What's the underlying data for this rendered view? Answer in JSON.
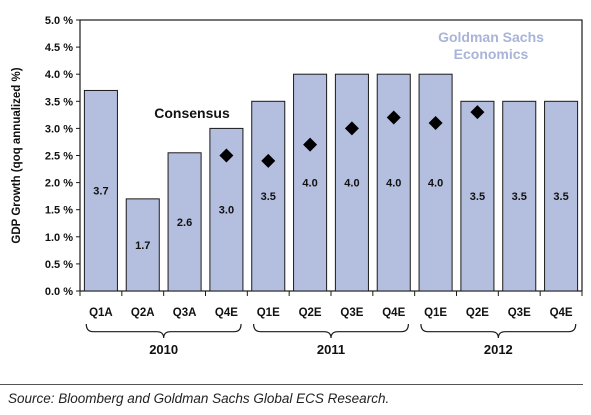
{
  "chart_data": {
    "type": "bar",
    "categories": [
      "Q1A",
      "Q2A",
      "Q3A",
      "Q4E",
      "Q1E",
      "Q2E",
      "Q3E",
      "Q4E",
      "Q1E",
      "Q2E",
      "Q3E",
      "Q4E"
    ],
    "values": [
      3.7,
      1.7,
      2.55,
      3.0,
      3.5,
      4.0,
      4.0,
      4.0,
      4.0,
      3.5,
      3.5,
      3.5
    ],
    "value_labels": [
      "3.7",
      "1.7",
      "2.6",
      "3.0",
      "3.5",
      "4.0",
      "4.0",
      "4.0",
      "4.0",
      "3.5",
      "3.5",
      "3.5"
    ],
    "consensus": [
      null,
      null,
      null,
      2.5,
      2.4,
      2.7,
      3.0,
      3.2,
      3.1,
      3.3,
      null,
      null
    ],
    "consensus_label": "Consensus",
    "year_groups": [
      {
        "label": "2010",
        "start": 0,
        "end": 3
      },
      {
        "label": "2011",
        "start": 4,
        "end": 7
      },
      {
        "label": "2012",
        "start": 8,
        "end": 11
      }
    ],
    "ylabel": "GDP Growth (qoq annualized %)",
    "ylim": [
      0,
      5
    ],
    "yticks": [
      "0.0 %",
      "0.5 %",
      "1.0 %",
      "1.5 %",
      "2.0 %",
      "2.5 %",
      "3.0 %",
      "3.5 %",
      "4.0 %",
      "4.5 %",
      "5.0 %"
    ],
    "brand_lines": [
      "Goldman Sachs",
      "Economics"
    ],
    "colors": {
      "bar_fill": "#b4bedf",
      "bar_stroke": "#1a1a1a",
      "marker": "#000000",
      "brand": "#a8b4d8"
    }
  },
  "source": "Source: Bloomberg and Goldman Sachs Global ECS Research."
}
